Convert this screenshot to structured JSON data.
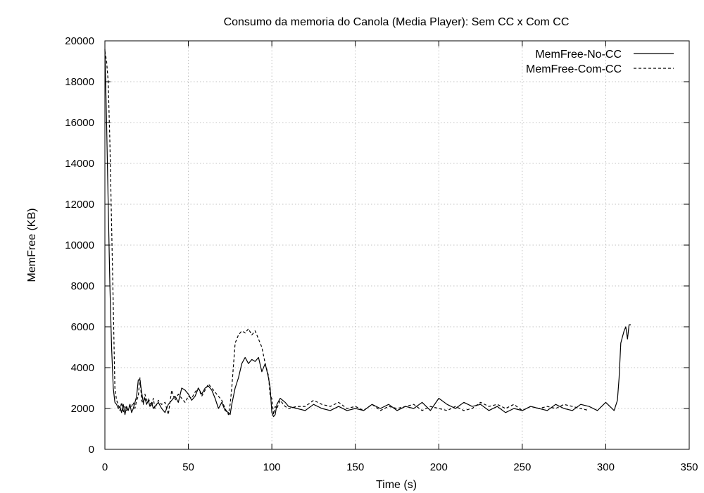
{
  "chart_data": {
    "type": "line",
    "title": "Consumo da memoria do Canola (Media Player): Sem CC x Com CC",
    "xlabel": "Time (s)",
    "ylabel": "MemFree (KB)",
    "xlim": [
      0,
      350
    ],
    "ylim": [
      0,
      20000
    ],
    "x_ticks": [
      0,
      50,
      100,
      150,
      200,
      250,
      300,
      350
    ],
    "y_ticks": [
      0,
      2000,
      4000,
      6000,
      8000,
      10000,
      12000,
      14000,
      16000,
      18000,
      20000
    ],
    "grid": true,
    "legend_position": "top-right",
    "series": [
      {
        "name": "MemFree-No-CC",
        "line_style": "solid",
        "color": "#000000",
        "x": [
          0,
          1,
          2,
          3,
          4,
          5,
          6,
          7,
          8,
          9,
          10,
          11,
          12,
          13,
          14,
          15,
          16,
          17,
          18,
          19,
          20,
          21,
          22,
          23,
          24,
          25,
          26,
          27,
          28,
          29,
          30,
          32,
          34,
          36,
          38,
          40,
          42,
          44,
          46,
          48,
          50,
          52,
          54,
          56,
          58,
          60,
          62,
          64,
          66,
          68,
          70,
          72,
          74,
          75,
          76,
          78,
          80,
          82,
          84,
          86,
          88,
          90,
          92,
          94,
          96,
          98,
          99,
          100,
          101,
          102,
          103,
          105,
          108,
          110,
          115,
          120,
          125,
          130,
          135,
          140,
          145,
          150,
          155,
          160,
          165,
          170,
          175,
          180,
          185,
          190,
          195,
          200,
          205,
          210,
          215,
          220,
          225,
          230,
          235,
          240,
          245,
          250,
          255,
          260,
          265,
          270,
          275,
          280,
          285,
          290,
          295,
          300,
          305,
          307,
          308,
          309,
          310,
          311,
          312,
          313,
          314,
          315
        ],
        "y": [
          19600,
          16000,
          12000,
          8000,
          5000,
          3000,
          2300,
          2200,
          2000,
          2100,
          1800,
          2200,
          1700,
          2100,
          1900,
          2200,
          1800,
          2000,
          2300,
          2600,
          3400,
          3400,
          2800,
          2300,
          2500,
          2200,
          2400,
          2100,
          2300,
          2000,
          2100,
          2300,
          2000,
          1800,
          2200,
          2400,
          2600,
          2300,
          3000,
          2900,
          2700,
          2400,
          2600,
          3000,
          2700,
          3000,
          3100,
          2900,
          2500,
          2000,
          2300,
          1900,
          1800,
          1700,
          2200,
          3000,
          3500,
          4200,
          4500,
          4200,
          4400,
          4300,
          4500,
          3800,
          4200,
          3500,
          3000,
          1800,
          1600,
          1700,
          2200,
          2500,
          2300,
          2100,
          2000,
          1900,
          2200,
          2000,
          1900,
          2100,
          1900,
          2000,
          1900,
          2200,
          2000,
          2200,
          1900,
          2100,
          2000,
          2300,
          1900,
          2500,
          2200,
          2000,
          2300,
          2100,
          2200,
          1900,
          2100,
          1800,
          2000,
          1900,
          2100,
          2000,
          1900,
          2200,
          2000,
          1900,
          2200,
          2100,
          1900,
          2300,
          1900,
          2400,
          3500,
          5200,
          5500,
          5800,
          6000,
          5400,
          6100,
          6100
        ]
      },
      {
        "name": "MemFree-Com-CC",
        "line_style": "dashed",
        "color": "#000000",
        "x": [
          0,
          1,
          2,
          3,
          4,
          5,
          6,
          7,
          8,
          9,
          10,
          11,
          12,
          13,
          14,
          15,
          16,
          17,
          18,
          19,
          20,
          21,
          22,
          23,
          24,
          25,
          26,
          27,
          28,
          29,
          30,
          32,
          34,
          36,
          38,
          40,
          42,
          44,
          46,
          48,
          50,
          52,
          54,
          56,
          58,
          60,
          62,
          64,
          66,
          68,
          70,
          72,
          74,
          75,
          76,
          78,
          80,
          82,
          84,
          86,
          88,
          90,
          92,
          94,
          96,
          98,
          99,
          100,
          101,
          102,
          103,
          105,
          108,
          110,
          115,
          120,
          125,
          130,
          135,
          140,
          145,
          150,
          155,
          160,
          165,
          170,
          175,
          180,
          185,
          190,
          195,
          200,
          205,
          210,
          215,
          220,
          225,
          230,
          235,
          240,
          245,
          250,
          255,
          260,
          265,
          270,
          275,
          280,
          285,
          290
        ],
        "y": [
          19500,
          19000,
          18000,
          15000,
          11000,
          7000,
          3000,
          2400,
          2200,
          1900,
          2300,
          1800,
          2100,
          1900,
          2000,
          2200,
          2100,
          2300,
          2000,
          2400,
          2600,
          3500,
          2400,
          2200,
          2700,
          2400,
          2500,
          2300,
          2100,
          2500,
          2000,
          2400,
          2200,
          2300,
          1700,
          2900,
          2400,
          2700,
          2500,
          2300,
          2600,
          2500,
          2800,
          3000,
          2600,
          2900,
          3200,
          3000,
          2800,
          2600,
          2400,
          2000,
          1700,
          2200,
          3000,
          5200,
          5600,
          5800,
          5700,
          5900,
          5600,
          5800,
          5400,
          5000,
          4200,
          3600,
          2600,
          2500,
          1700,
          2100,
          2000,
          2400,
          2100,
          2000,
          2100,
          2100,
          2400,
          2200,
          2100,
          2300,
          2000,
          2100,
          1900,
          2200,
          1900,
          2100,
          2000,
          2100,
          2200,
          1900,
          2100,
          2000,
          1900,
          2100,
          1900,
          2000,
          2300,
          2100,
          2200,
          2000,
          2200,
          1900,
          2100,
          2000,
          2100,
          2000,
          2200,
          2100,
          2000,
          1900
        ]
      }
    ]
  }
}
